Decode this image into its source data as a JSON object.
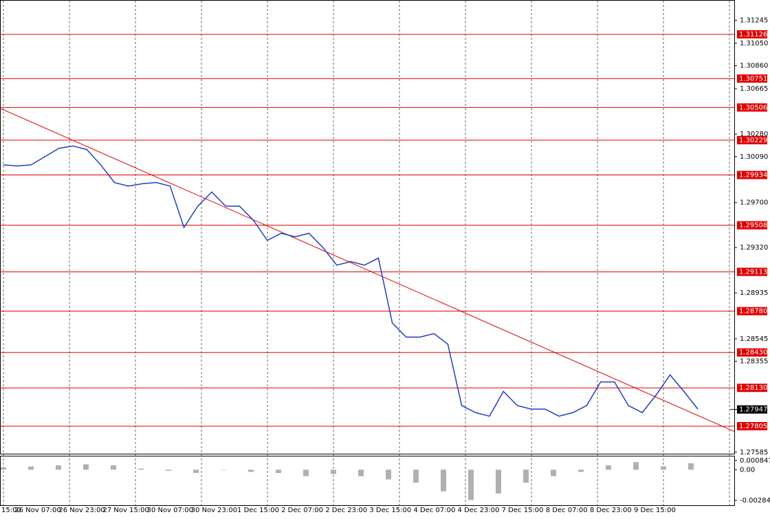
{
  "chart_data": {
    "type": "line",
    "color": "#1f3fbf",
    "values": [
      1.3002,
      1.3001,
      1.3002,
      1.3009,
      1.3016,
      1.3018,
      1.3015,
      1.3002,
      1.2987,
      1.2984,
      1.2986,
      1.2987,
      1.2984,
      1.2949,
      1.2967,
      1.2979,
      1.2967,
      1.2967,
      1.2955,
      1.2938,
      1.2944,
      1.2941,
      1.2944,
      1.2932,
      1.2917,
      1.292,
      1.2917,
      1.2923,
      1.2868,
      1.2856,
      1.2856,
      1.2859,
      1.285,
      1.2798,
      1.2792,
      1.2789,
      1.281,
      1.2798,
      1.2795,
      1.2795,
      1.2789,
      1.2792,
      1.2798,
      1.2818,
      1.2818,
      1.2798,
      1.2792,
      1.2807,
      1.2824,
      1.281,
      1.2795
    ],
    "ylim": [
      1.27572,
      1.31417
    ],
    "yticks": [
      1.31245,
      {
        "value": 1.3105,
        "label": "1.31050"
      },
      {
        "value": 1.3086,
        "label": "1.30860"
      },
      1.30665,
      {
        "value": 1.3028,
        "label": "1.30280"
      },
      {
        "value": 1.3009,
        "label": "1.30090"
      },
      {
        "value": 1.297,
        "label": "1.29700"
      },
      {
        "value": 1.2932,
        "label": "1.29320"
      },
      1.28935,
      1.28545,
      1.28355,
      1.27585
    ],
    "levels": [
      1.31126,
      1.30751,
      1.30506,
      1.30229,
      1.29934,
      1.29508,
      1.29113,
      {
        "value": 1.2878,
        "label": "1.28780"
      },
      {
        "value": 1.2843,
        "label": "1.28430"
      },
      {
        "value": 1.2813,
        "label": "1.28130"
      },
      1.27805
    ],
    "level_color": "#e00000",
    "current_price": 1.27947,
    "trendline": [
      1.305,
      1.2776
    ],
    "x_labels": [
      "15:00",
      "26 Nov 07:00",
      "26 Nov 23:00",
      "27 Nov 15:00",
      "30 Nov 07:00",
      "30 Nov 23:00",
      "1 Dec 15:00",
      "2 Dec 07:00",
      "2 Dec 23:00",
      "3 Dec 15:00",
      "4 Dec 07:00",
      "4 Dec 23:00",
      "7 Dec 15:00",
      "8 Dec 07:00",
      "8 Dec 23:00",
      "9 Dec 15:00"
    ],
    "indicator": {
      "ylim": [
        -0.0031,
        0.0011
      ],
      "yticks": [
        0.000847,
        {
          "value": 0,
          "label": "0.00"
        },
        -0.002843
      ],
      "values": [
        0.0002,
        0.0003,
        0.0004,
        0.0005,
        0.0004,
        0.0001,
        -0.0001,
        -0.0003,
        0.0,
        -0.0002,
        -0.0003,
        -0.0006,
        -0.0004,
        -0.0006,
        -0.0009,
        -0.0012,
        -0.002,
        -0.0028,
        -0.0022,
        -0.0012,
        -0.0006,
        -0.0002,
        0.0004,
        0.0007,
        0.0003,
        0.0006
      ]
    }
  }
}
